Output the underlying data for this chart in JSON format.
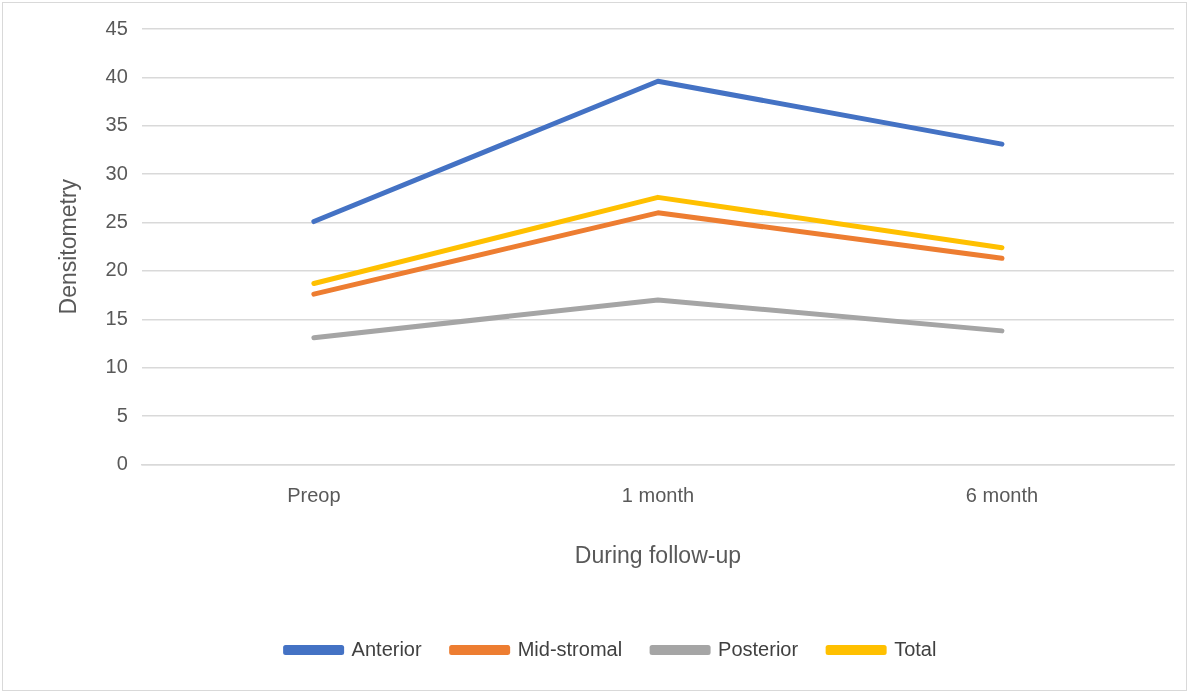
{
  "chart_data": {
    "type": "line",
    "xlabel": "During follow-up",
    "ylabel": "Densitometry",
    "categories": [
      "Preop",
      "1 month",
      "6 month"
    ],
    "series": [
      {
        "name": "Anterior",
        "color": "#4472c4",
        "values": [
          25.1,
          39.6,
          33.1
        ]
      },
      {
        "name": "Mid-stromal",
        "color": "#ed7d31",
        "values": [
          17.6,
          26.0,
          21.3
        ]
      },
      {
        "name": "Posterior",
        "color": "#a5a5a5",
        "values": [
          13.1,
          17.0,
          13.8
        ]
      },
      {
        "name": "Total",
        "color": "#ffc000",
        "values": [
          18.7,
          27.6,
          22.4
        ]
      }
    ],
    "ylim": [
      0,
      45
    ],
    "yticks": [
      0,
      5,
      10,
      15,
      20,
      25,
      30,
      35,
      40,
      45
    ],
    "grid": "y",
    "legend": "bottom",
    "marker": "none",
    "line_style": "solid"
  }
}
